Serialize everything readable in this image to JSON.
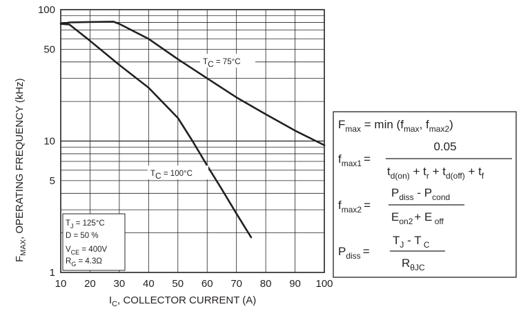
{
  "chart_data": {
    "type": "line",
    "xlabel": {
      "main": "I",
      "sub": "C",
      "rest": ", COLLECTOR CURRENT (A)"
    },
    "ylabel": {
      "main": "F",
      "sub": "MAX",
      "rest": ", OPERATING FREQUENCY (kHz)"
    },
    "xlim": [
      10,
      100
    ],
    "ylim": [
      1,
      100
    ],
    "yscale": "log",
    "grid": true,
    "x_ticks": [
      10,
      20,
      30,
      40,
      50,
      60,
      70,
      80,
      90,
      100
    ],
    "y_ticks": [
      1,
      5,
      10,
      50,
      100
    ],
    "series": [
      {
        "name": "T_C = 75°C",
        "label": {
          "main": "T",
          "sub": "C",
          "rest": " =  75°C"
        },
        "x": [
          10,
          13,
          20,
          28,
          30,
          40,
          50,
          60,
          70,
          80,
          90,
          100
        ],
        "y": [
          78,
          80,
          80.5,
          81,
          78,
          60,
          42,
          30,
          21.5,
          16,
          12,
          9.3
        ]
      },
      {
        "name": "T_C = 100°C",
        "label": {
          "main": "T",
          "sub": "C",
          "rest": " =  100°C"
        },
        "x": [
          10,
          13,
          20,
          30,
          40,
          50,
          55,
          60,
          65,
          70,
          75
        ],
        "y": [
          78,
          77,
          58,
          38,
          25.5,
          15,
          10,
          6.5,
          4.3,
          2.8,
          1.85
        ]
      }
    ],
    "conditions": [
      {
        "main": "T",
        "sub": "J",
        "rest": " =  125°C"
      },
      {
        "main": "D = 50 %",
        "sub": "",
        "rest": ""
      },
      {
        "main": "V",
        "sub": "CE",
        "rest": " =  400V"
      },
      {
        "main": "R",
        "sub": "G",
        "rest": " = 4.3Ω"
      }
    ]
  },
  "formulas": {
    "line1": {
      "lhs": "F",
      "lhs_sub": "max",
      "eq": " = min (f",
      "a_sub": "max",
      "sep": ", f",
      "b_sub": "max2",
      "close": ")"
    },
    "line2": {
      "lhs": "f",
      "lhs_sub": "max1",
      "eq": "=",
      "num": "0.05",
      "d1": "t",
      "d1_sub": "d(on)",
      "d2": " + t",
      "d2_sub": "r",
      "d3": " + t",
      "d3_sub": "d(off)",
      "d4": " + t",
      "d4_sub": "f"
    },
    "line3": {
      "lhs": "f",
      "lhs_sub": "max2",
      "eq": "=",
      "n1": "P",
      "n1_sub": "diss",
      "n2": " - P",
      "n2_sub": "cond",
      "m1": "E",
      "m1_sub": "on2",
      "m2": "+ E",
      "m2_sub": " off"
    },
    "line4": {
      "lhs": "P",
      "lhs_sub": "diss",
      "eq": "=",
      "n1": "T",
      "n1_sub": "J",
      "n2": " - T",
      "n2_sub": " C",
      "den": "R",
      "den_sub": "θJC"
    }
  }
}
